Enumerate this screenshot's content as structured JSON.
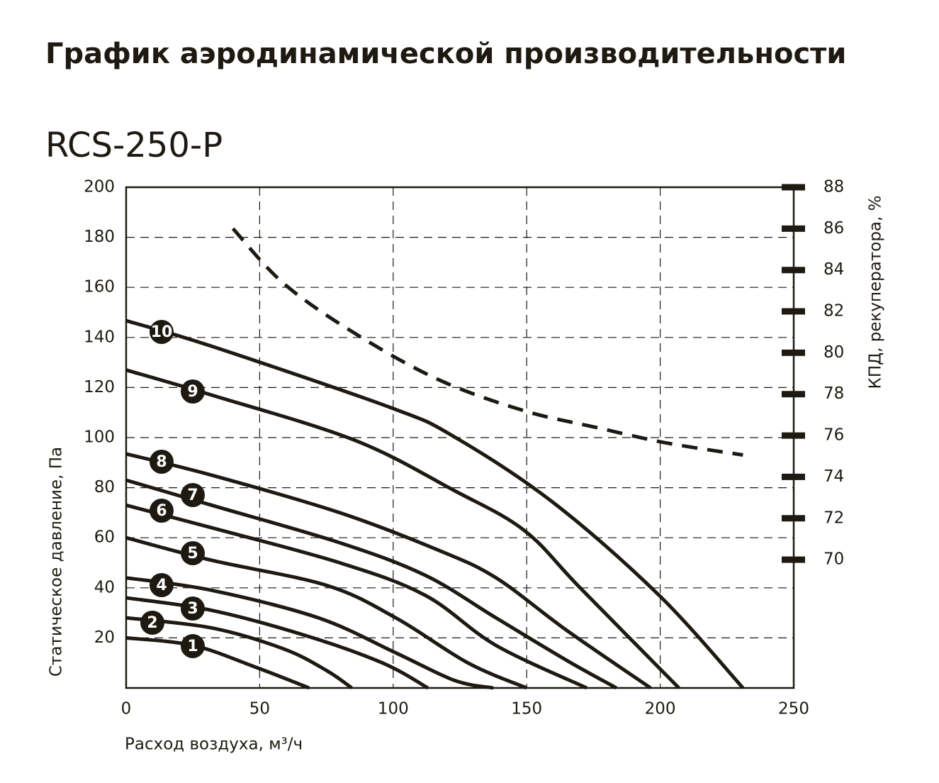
{
  "chart_data": {
    "type": "line",
    "title": "График аэродинамической производительности",
    "subtitle": "RCS-250-P",
    "x_label": "Расход воздуха, м³/ч",
    "y_label": "Статическое давление, Па",
    "y2_label": "КПД, рекуператора, %",
    "xlim": [
      0,
      250
    ],
    "xticks": [
      0,
      50,
      100,
      150,
      200,
      250
    ],
    "ylim": [
      0,
      200
    ],
    "yticks": [
      20,
      40,
      60,
      80,
      100,
      120,
      140,
      160,
      180,
      200
    ],
    "y2lim": [
      63.8,
      88
    ],
    "y2ticks": [
      70,
      72,
      74,
      76,
      78,
      80,
      82,
      84,
      86,
      88
    ],
    "grid": true,
    "series": [
      {
        "name": "1",
        "color": "#1e1a12",
        "x": [
          0,
          25,
          48,
          68.5
        ],
        "values": [
          20,
          17,
          8.5,
          0
        ]
      },
      {
        "name": "2",
        "color": "#1e1a12",
        "x": [
          0,
          32,
          59,
          75,
          84.5
        ],
        "values": [
          28,
          24,
          15.6,
          7,
          0
        ]
      },
      {
        "name": "3",
        "color": "#1e1a12",
        "x": [
          0,
          32,
          67,
          96,
          113
        ],
        "values": [
          36,
          31,
          21,
          10,
          0
        ]
      },
      {
        "name": "4",
        "color": "#1e1a12",
        "x": [
          0,
          32,
          72,
          101,
          123,
          137.5
        ],
        "values": [
          44,
          39,
          28,
          14,
          3,
          0
        ]
      },
      {
        "name": "5",
        "color": "#1e1a12",
        "x": [
          0,
          32,
          75,
          101,
          128,
          150
        ],
        "values": [
          60,
          51,
          41,
          28,
          10,
          0
        ]
      },
      {
        "name": "6",
        "color": "#1e1a12",
        "x": [
          0,
          32,
          80,
          112,
          138.5,
          172.5
        ],
        "values": [
          73,
          64,
          50,
          37,
          17,
          0
        ]
      },
      {
        "name": "7",
        "color": "#1e1a12",
        "x": [
          0,
          32,
          80,
          112,
          138.5,
          165,
          183.6
        ],
        "values": [
          83,
          73,
          58,
          45,
          28,
          11,
          0
        ]
      },
      {
        "name": "8",
        "color": "#1e1a12",
        "x": [
          0,
          32,
          80,
          117,
          138.5,
          165,
          196.4
        ],
        "values": [
          93.5,
          85,
          70,
          55,
          44,
          23,
          0
        ]
      },
      {
        "name": "9",
        "color": "#1e1a12",
        "x": [
          0,
          32,
          85.5,
          122.6,
          149,
          170,
          207
        ],
        "values": [
          127,
          117,
          99,
          79,
          63,
          40,
          0
        ]
      },
      {
        "name": "10",
        "color": "#1e1a12",
        "x": [
          0,
          32,
          99,
          122.6,
          160,
          199.6,
          231
        ],
        "values": [
          146.7,
          136.5,
          112,
          100.5,
          74,
          37,
          0
        ]
      },
      {
        "color": "#1e1a12",
        "axis": "y2",
        "dashed": true,
        "x": [
          40,
          59,
          85.5,
          117,
          149,
          175.7,
          202,
          231
        ],
        "values": [
          86,
          83.35,
          80.95,
          78.7,
          77.2,
          76.4,
          75.65,
          75.06
        ]
      }
    ]
  }
}
